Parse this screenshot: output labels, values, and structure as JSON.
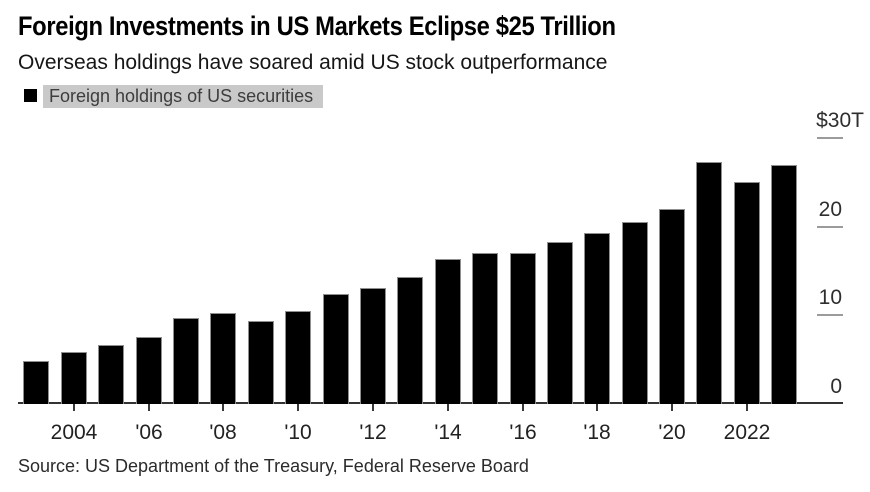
{
  "header": {
    "title": "Foreign Investments in US Markets Eclipse $25 Trillion",
    "subtitle": "Overseas holdings have soared amid US stock outperformance"
  },
  "legend": {
    "label": "Foreign holdings of US securities",
    "swatch_color": "#000000",
    "highlight_color": "#c9c9c9"
  },
  "source": "Source: US Department of the Treasury, Federal Reserve Board",
  "chart_data": {
    "type": "bar",
    "title": "Foreign Investments in US Markets Eclipse $25 Trillion",
    "subtitle": "Overseas holdings have soared amid US stock outperformance",
    "series_name": "Foreign holdings of US securities",
    "unit": "trillions of US dollars",
    "bar_color": "#000000",
    "categories": [
      2003,
      2004,
      2005,
      2006,
      2007,
      2008,
      2009,
      2010,
      2011,
      2012,
      2013,
      2014,
      2015,
      2016,
      2017,
      2018,
      2019,
      2020,
      2021,
      2022,
      2023
    ],
    "values": [
      4.8,
      5.9,
      6.7,
      7.6,
      9.7,
      10.2,
      9.4,
      10.5,
      12.4,
      13.1,
      14.3,
      16.3,
      17.0,
      17.0,
      18.3,
      19.3,
      20.5,
      22.0,
      27.3,
      25.0,
      26.9
    ],
    "ylim": [
      0,
      30
    ],
    "y_ticks": [
      {
        "label": "$30T",
        "value": 30,
        "dash": true
      },
      {
        "label": "20",
        "value": 20,
        "dash": true
      },
      {
        "label": "10",
        "value": 10,
        "dash": true
      },
      {
        "label": "0",
        "value": 0,
        "dash": false
      }
    ],
    "x_tick_labels": [
      {
        "year": 2004,
        "label": "2004"
      },
      {
        "year": 2006,
        "label": "'06"
      },
      {
        "year": 2008,
        "label": "'08"
      },
      {
        "year": 2010,
        "label": "'10"
      },
      {
        "year": 2012,
        "label": "'12"
      },
      {
        "year": 2014,
        "label": "'14"
      },
      {
        "year": 2016,
        "label": "'16"
      },
      {
        "year": 2018,
        "label": "'18"
      },
      {
        "year": 2020,
        "label": "'20"
      },
      {
        "year": 2022,
        "label": "2022"
      }
    ],
    "grid": "right-edge tick dashes only",
    "legend_position": "top-left"
  }
}
